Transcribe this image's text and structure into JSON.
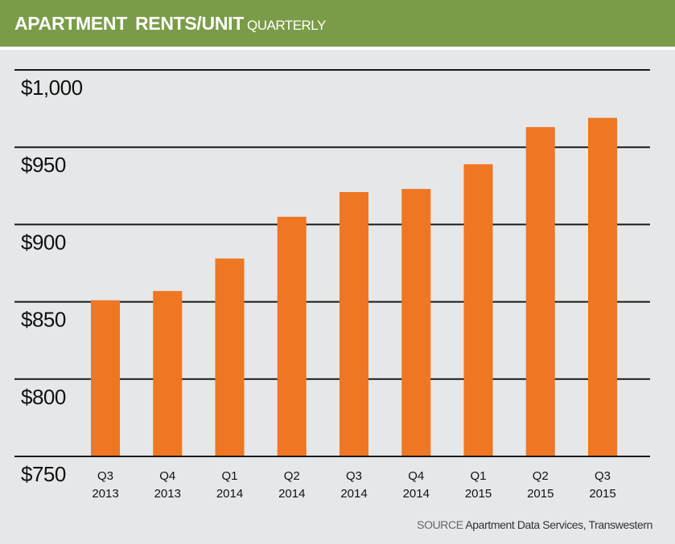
{
  "header": {
    "title_part1": "APARTMENT",
    "title_part2": "RENTS/UNIT",
    "subtitle": "QUARTERLY"
  },
  "colors": {
    "header": "#7a9c48",
    "bar": "#ef7622",
    "background": "#e6e7e8",
    "grid": "#1a1a1a"
  },
  "chart_data": {
    "type": "bar",
    "title": "APARTMENT RENTS/UNIT QUARTERLY",
    "categories": [
      [
        "Q3",
        "2013"
      ],
      [
        "Q4",
        "2013"
      ],
      [
        "Q1",
        "2014"
      ],
      [
        "Q2",
        "2014"
      ],
      [
        "Q3",
        "2014"
      ],
      [
        "Q4",
        "2014"
      ],
      [
        "Q1",
        "2015"
      ],
      [
        "Q2",
        "2015"
      ],
      [
        "Q3",
        "2015"
      ]
    ],
    "values": [
      851,
      857,
      878,
      905,
      921,
      923,
      939,
      963,
      969
    ],
    "ylim": [
      750,
      1000
    ],
    "yticks": [
      750,
      800,
      850,
      900,
      950,
      1000
    ],
    "ytick_labels": [
      "$750",
      "$800",
      "$850",
      "$900",
      "$950",
      "$1,000"
    ],
    "grid": true
  },
  "source": {
    "label": "SOURCE",
    "text": "Apartment Data Services, Transwestern"
  }
}
